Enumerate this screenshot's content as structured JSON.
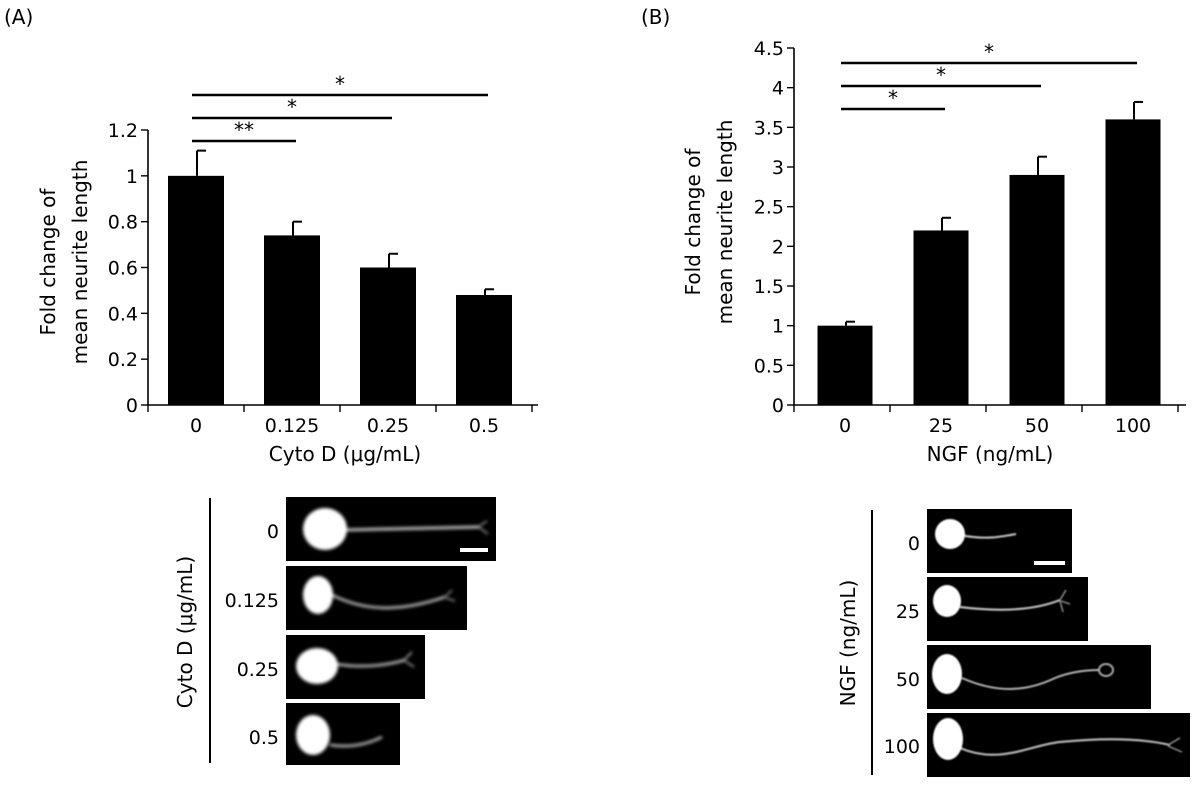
{
  "panels": [
    {
      "label": "(A)"
    },
    {
      "label": "(B)"
    }
  ],
  "chart_data": [
    {
      "type": "bar",
      "title": "",
      "xlabel": "Cyto D (μg/mL)",
      "ylabel_lines": [
        "Fold change of",
        "mean neurite length"
      ],
      "categories": [
        "0",
        "0.125",
        "0.25",
        "0.5"
      ],
      "values": [
        1.0,
        0.74,
        0.6,
        0.48
      ],
      "errors": [
        0.11,
        0.06,
        0.06,
        0.025
      ],
      "ylim": [
        0,
        1.2
      ],
      "yticks": [
        "0",
        "0.2",
        "0.4",
        "0.6",
        "0.8",
        "1",
        "1.2"
      ],
      "ytick_values": [
        0,
        0.2,
        0.4,
        0.6,
        0.8,
        1.0,
        1.2
      ],
      "bar_color": "#000000",
      "significance": [
        {
          "from": 0,
          "to": 1,
          "mark": "**"
        },
        {
          "from": 0,
          "to": 2,
          "mark": "*"
        },
        {
          "from": 0,
          "to": 3,
          "mark": "*"
        }
      ]
    },
    {
      "type": "bar",
      "title": "",
      "xlabel": "NGF (ng/mL)",
      "ylabel_lines": [
        "Fold change of",
        "mean neurite length"
      ],
      "categories": [
        "0",
        "25",
        "50",
        "100"
      ],
      "values": [
        1.0,
        2.2,
        2.9,
        3.6
      ],
      "errors": [
        0.05,
        0.16,
        0.23,
        0.22
      ],
      "ylim": [
        0,
        4.5
      ],
      "yticks": [
        "0",
        "0.5",
        "1",
        "1.5",
        "2",
        "2.5",
        "3",
        "3.5",
        "4",
        "4.5"
      ],
      "ytick_values": [
        0,
        0.5,
        1,
        1.5,
        2,
        2.5,
        3,
        3.5,
        4,
        4.5
      ],
      "bar_color": "#000000",
      "significance": [
        {
          "from": 0,
          "to": 1,
          "mark": "*"
        },
        {
          "from": 0,
          "to": 2,
          "mark": "*"
        },
        {
          "from": 0,
          "to": 3,
          "mark": "*"
        }
      ]
    }
  ],
  "micrographs": [
    {
      "axis_label": "Cyto D (μg/mL)",
      "rows": [
        "0",
        "0.125",
        "0.25",
        "0.5"
      ]
    },
    {
      "axis_label": "NGF (ng/mL)",
      "rows": [
        "0",
        "25",
        "50",
        "100"
      ]
    }
  ]
}
